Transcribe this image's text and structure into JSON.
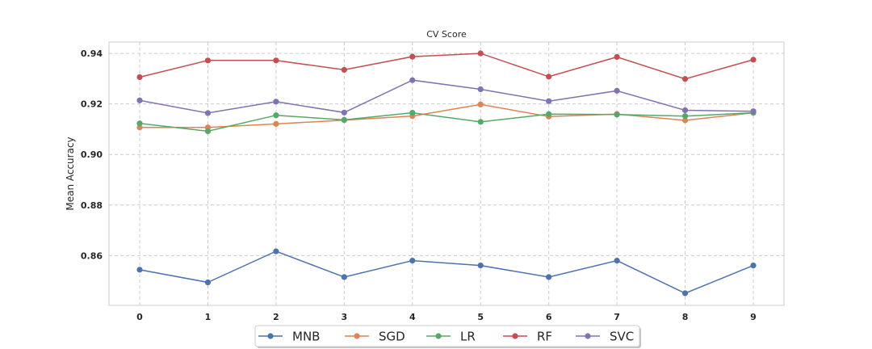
{
  "chart_data": {
    "type": "line",
    "title": "CV Score",
    "xlabel": "",
    "ylabel": "Mean Accuracy",
    "x": [
      0,
      1,
      2,
      3,
      4,
      5,
      6,
      7,
      8,
      9
    ],
    "xlim": [
      -0.45,
      9.45
    ],
    "ylim": [
      0.8403,
      0.9445
    ],
    "yticks": [
      0.86,
      0.88,
      0.9,
      0.92,
      0.94
    ],
    "ytick_labels": [
      "0.86",
      "0.88",
      "0.90",
      "0.92",
      "0.94"
    ],
    "xtick_labels": [
      "0",
      "1",
      "2",
      "3",
      "4",
      "5",
      "6",
      "7",
      "8",
      "9"
    ],
    "grid": true,
    "legend_position": "bottom-center",
    "series": [
      {
        "name": "MNB",
        "color": "#4c72b0",
        "values": [
          0.8544,
          0.8494,
          0.8617,
          0.8515,
          0.858,
          0.8561,
          0.8515,
          0.858,
          0.8451,
          0.8561
        ]
      },
      {
        "name": "SGD",
        "color": "#dd8452",
        "values": [
          0.9107,
          0.9107,
          0.9121,
          0.9136,
          0.9152,
          0.9198,
          0.915,
          0.916,
          0.9135,
          0.9165
        ]
      },
      {
        "name": "LR",
        "color": "#55a868",
        "values": [
          0.9123,
          0.9092,
          0.9155,
          0.9137,
          0.9165,
          0.9129,
          0.916,
          0.9158,
          0.9152,
          0.9165
        ]
      },
      {
        "name": "RF",
        "color": "#c44e52",
        "values": [
          0.9306,
          0.9372,
          0.9372,
          0.9335,
          0.9387,
          0.94,
          0.9308,
          0.9386,
          0.9299,
          0.9375
        ]
      },
      {
        "name": "SVC",
        "color": "#8172b3",
        "values": [
          0.9214,
          0.9164,
          0.9209,
          0.9166,
          0.9294,
          0.9258,
          0.9211,
          0.9252,
          0.9175,
          0.9171
        ]
      }
    ]
  }
}
